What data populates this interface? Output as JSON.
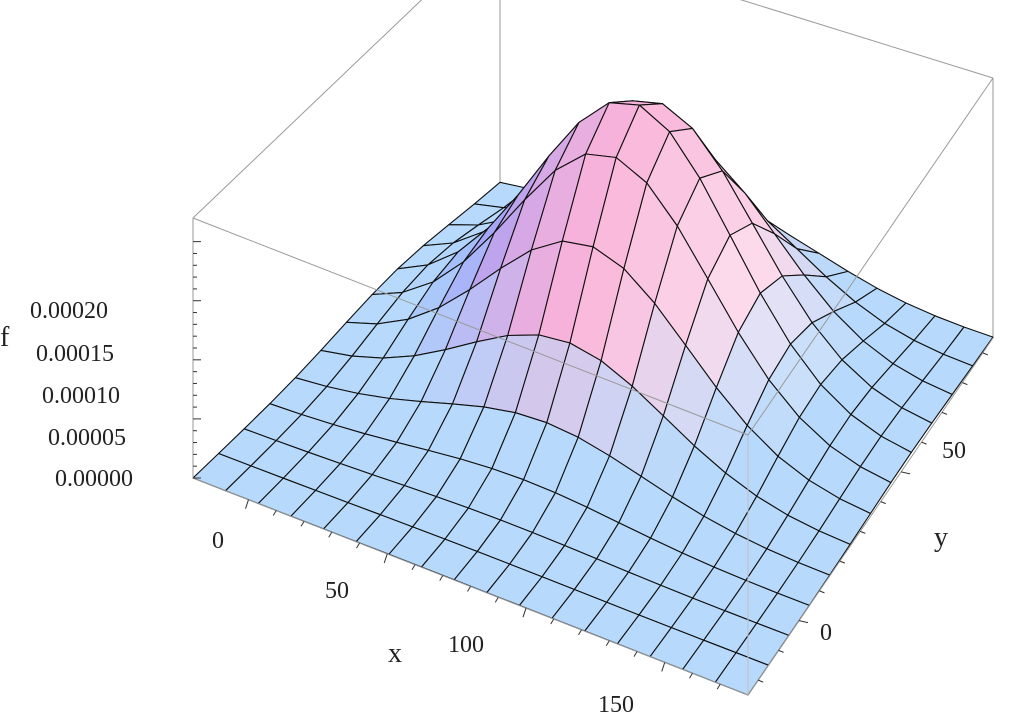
{
  "chart_data": {
    "type": "surface",
    "xlabel": "x",
    "ylabel": "y",
    "zlabel": "f",
    "x_ticks": [
      "0",
      "50",
      "100",
      "150"
    ],
    "y_ticks": [
      "0",
      "50"
    ],
    "z_ticks": [
      "0.00000",
      "0.00005",
      "0.00010",
      "0.00015",
      "0.00020"
    ],
    "xlim": [
      -20,
      180
    ],
    "ylim": [
      -25,
      95
    ],
    "zlim": [
      0,
      0.00022
    ],
    "grid_resolution": [
      17,
      12
    ],
    "surface": {
      "function": "bivariate gaussian",
      "peak_value": 0.00022,
      "mean_x": 72,
      "mean_y": 55,
      "sigma_x": 38,
      "sigma_y": 22
    },
    "colormap": [
      "#6f8cff",
      "#c9a6f2",
      "#f9b3d8",
      "#ffffff",
      "#b7d9fb"
    ]
  }
}
